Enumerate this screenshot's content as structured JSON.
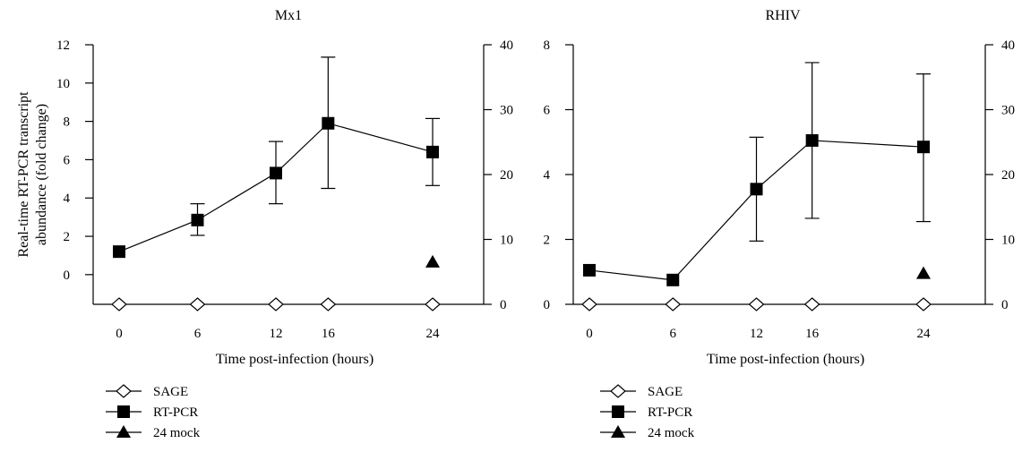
{
  "chart_data": [
    {
      "type": "line",
      "title": "Mx1",
      "xlabel": "Time post-infection (hours)",
      "ylabel_left": "Real-time RT-PCR transcript abundance (fold change)",
      "ylabel_right": "",
      "x_ticks": [
        0,
        6,
        12,
        16,
        24
      ],
      "y_left_ticks": [
        0,
        2,
        4,
        6,
        8,
        10,
        12
      ],
      "y_right_ticks": [
        0,
        10,
        20,
        30,
        40
      ],
      "y_left_range": [
        -1.55,
        12
      ],
      "y_right_range": [
        0,
        40
      ],
      "series": [
        {
          "name": "SAGE",
          "marker": "open-diamond",
          "axis": "right",
          "connected": false,
          "x": [
            0,
            6,
            12,
            16,
            24
          ],
          "y": [
            0,
            0,
            0,
            0,
            0
          ]
        },
        {
          "name": "RT-PCR",
          "marker": "filled-square",
          "axis": "left",
          "connected": true,
          "x": [
            0,
            6,
            12,
            16,
            24
          ],
          "y": [
            1.2,
            2.85,
            5.3,
            7.9,
            6.4
          ],
          "err_low": [
            1.2,
            2.05,
            3.7,
            4.5,
            4.65
          ],
          "err_high": [
            1.2,
            3.7,
            6.95,
            11.35,
            8.15
          ]
        },
        {
          "name": "24 mock",
          "marker": "filled-triangle",
          "axis": "left",
          "connected": false,
          "x": [
            24
          ],
          "y": [
            0.65
          ]
        }
      ]
    },
    {
      "type": "line",
      "title": "RHIV",
      "xlabel": "Time post-infection (hours)",
      "ylabel_left": "",
      "ylabel_right": "",
      "x_ticks": [
        0,
        6,
        12,
        16,
        24
      ],
      "y_left_ticks": [
        0,
        2,
        4,
        6,
        8
      ],
      "y_right_ticks": [
        0,
        10,
        20,
        30,
        40
      ],
      "y_left_range": [
        0,
        8
      ],
      "y_right_range": [
        0,
        40
      ],
      "series": [
        {
          "name": "SAGE",
          "marker": "open-diamond",
          "axis": "right",
          "connected": false,
          "x": [
            0,
            6,
            12,
            16,
            24
          ],
          "y": [
            0,
            0,
            0,
            0,
            0
          ]
        },
        {
          "name": "RT-PCR",
          "marker": "filled-square",
          "axis": "left",
          "connected": true,
          "x": [
            0,
            6,
            12,
            16,
            24
          ],
          "y": [
            1.05,
            0.75,
            3.55,
            5.05,
            4.85
          ],
          "err_low": [
            1.05,
            0.75,
            1.95,
            2.65,
            2.55
          ],
          "err_high": [
            1.05,
            0.75,
            5.15,
            7.45,
            7.1
          ]
        },
        {
          "name": "24 mock",
          "marker": "filled-triangle",
          "axis": "left",
          "connected": false,
          "x": [
            24
          ],
          "y": [
            0.95
          ]
        }
      ]
    }
  ]
}
